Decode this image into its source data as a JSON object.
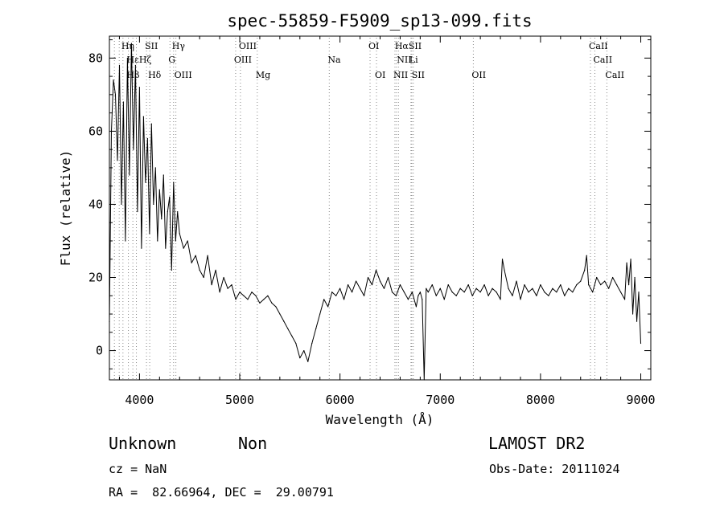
{
  "chart_data": {
    "type": "line",
    "title": "spec-55859-F5909_sp13-099.fits",
    "xlabel": "Wavelength (Å)",
    "ylabel": "Flux (relative)",
    "xlim": [
      3700,
      9100
    ],
    "ylim": [
      -8,
      86
    ],
    "xticks": [
      4000,
      5000,
      6000,
      7000,
      8000,
      9000
    ],
    "yticks": [
      0,
      20,
      40,
      60,
      80
    ],
    "grid": false,
    "legend": "none",
    "series": [
      {
        "x": [
          3700,
          3720,
          3740,
          3760,
          3780,
          3800,
          3820,
          3840,
          3860,
          3880,
          3900,
          3920,
          3940,
          3960,
          3980,
          4000,
          4020,
          4040,
          4060,
          4080,
          4100,
          4120,
          4140,
          4160,
          4180,
          4200,
          4220,
          4240,
          4260,
          4280,
          4300,
          4320,
          4340,
          4360,
          4380,
          4400,
          4440,
          4480,
          4520,
          4560,
          4600,
          4640,
          4680,
          4720,
          4760,
          4800,
          4840,
          4880,
          4920,
          4960,
          5000,
          5040,
          5080,
          5120,
          5160,
          5200,
          5240,
          5280,
          5320,
          5360,
          5400,
          5440,
          5480,
          5520,
          5560,
          5600,
          5640,
          5680,
          5720,
          5760,
          5800,
          5840,
          5880,
          5920,
          5960,
          6000,
          6040,
          6080,
          6120,
          6160,
          6200,
          6240,
          6280,
          6320,
          6360,
          6400,
          6440,
          6480,
          6520,
          6560,
          6600,
          6640,
          6680,
          6720,
          6760,
          6780,
          6800,
          6820,
          6840,
          6860,
          6880,
          6920,
          6960,
          7000,
          7040,
          7080,
          7120,
          7160,
          7200,
          7240,
          7280,
          7320,
          7360,
          7400,
          7440,
          7480,
          7520,
          7560,
          7600,
          7620,
          7640,
          7680,
          7720,
          7760,
          7800,
          7840,
          7880,
          7920,
          7960,
          8000,
          8040,
          8080,
          8120,
          8160,
          8200,
          8240,
          8280,
          8320,
          8360,
          8400,
          8440,
          8460,
          8480,
          8520,
          8560,
          8600,
          8640,
          8680,
          8720,
          8760,
          8800,
          8840,
          8860,
          8880,
          8900,
          8920,
          8940,
          8960,
          8980,
          9000
        ],
        "y": [
          8,
          60,
          74,
          70,
          52,
          78,
          40,
          68,
          30,
          80,
          48,
          84,
          55,
          78,
          38,
          72,
          28,
          64,
          46,
          58,
          32,
          62,
          40,
          50,
          30,
          44,
          36,
          48,
          28,
          38,
          42,
          22,
          46,
          30,
          38,
          32,
          28,
          30,
          24,
          26,
          22,
          20,
          26,
          18,
          22,
          16,
          20,
          17,
          18,
          14,
          16,
          15,
          14,
          16,
          15,
          13,
          14,
          15,
          13,
          12,
          10,
          8,
          6,
          4,
          2,
          -2,
          0,
          -3,
          2,
          6,
          10,
          14,
          12,
          16,
          15,
          17,
          14,
          18,
          16,
          19,
          17,
          15,
          20,
          18,
          22,
          19,
          17,
          20,
          16,
          15,
          18,
          16,
          14,
          16,
          12,
          15,
          16,
          14,
          -8,
          17,
          16,
          18,
          15,
          17,
          14,
          18,
          16,
          15,
          17,
          16,
          18,
          15,
          17,
          16,
          18,
          15,
          17,
          16,
          14,
          25,
          22,
          17,
          15,
          19,
          14,
          18,
          16,
          17,
          15,
          18,
          16,
          15,
          17,
          16,
          18,
          15,
          17,
          16,
          18,
          19,
          22,
          26,
          18,
          16,
          20,
          18,
          19,
          17,
          20,
          18,
          16,
          14,
          24,
          18,
          25,
          10,
          20,
          8,
          16,
          2
        ]
      }
    ],
    "line_markers": {
      "row1": [
        {
          "label": "Hη",
          "x": 3835
        },
        {
          "label": "SII",
          "x": 4070
        },
        {
          "label": "Hγ",
          "x": 4340
        },
        {
          "label": "OIII",
          "x": 5007
        },
        {
          "label": "OI",
          "x": 6300
        },
        {
          "label": "HαSII",
          "x": 6563
        },
        {
          "label": "CaII",
          "x": 8498
        }
      ],
      "row2": [
        {
          "label": "HεHζ",
          "x": 3889
        },
        {
          "label": "G",
          "x": 4304
        },
        {
          "label": "OIII",
          "x": 4959
        },
        {
          "label": "Na",
          "x": 5893
        },
        {
          "label": "NII",
          "x": 6583
        },
        {
          "label": "Li",
          "x": 6708
        },
        {
          "label": "CaII",
          "x": 8542
        }
      ],
      "row3": [
        {
          "label": "Hδ",
          "x": 4102
        },
        {
          "label": "Hβ",
          "x": 3889
        },
        {
          "label": "OIII",
          "x": 4363
        },
        {
          "label": "Mg",
          "x": 5175
        },
        {
          "label": "OI",
          "x": 6364
        },
        {
          "label": "NII",
          "x": 6548
        },
        {
          "label": "SII",
          "x": 6731
        },
        {
          "label": "OII",
          "x": 7330
        },
        {
          "label": "CaII",
          "x": 8662
        }
      ],
      "dotted_lines_x": [
        3750,
        3798,
        3835,
        3889,
        3934,
        3969,
        4070,
        4102,
        4304,
        4340,
        4363,
        4959,
        5007,
        5175,
        5893,
        6300,
        6364,
        6548,
        6563,
        6583,
        6708,
        6716,
        6731,
        7330,
        8498,
        8542,
        8662
      ]
    }
  },
  "info": {
    "class_label": "Unknown",
    "subclass_label": "Non",
    "survey": "LAMOST DR2",
    "cz": "cz = NaN",
    "obs_date": "Obs-Date: 20111024",
    "coords": "RA =  82.66964, DEC =  29.00791"
  }
}
